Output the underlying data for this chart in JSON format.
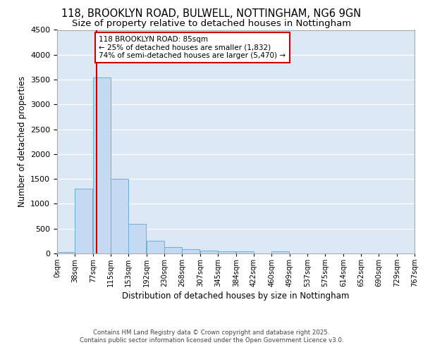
{
  "title1": "118, BROOKLYN ROAD, BULWELL, NOTTINGHAM, NG6 9GN",
  "title2": "Size of property relative to detached houses in Nottingham",
  "xlabel": "Distribution of detached houses by size in Nottingham",
  "ylabel": "Number of detached properties",
  "bin_labels": [
    "0sqm",
    "38sqm",
    "77sqm",
    "115sqm",
    "153sqm",
    "192sqm",
    "230sqm",
    "268sqm",
    "307sqm",
    "345sqm",
    "384sqm",
    "422sqm",
    "460sqm",
    "499sqm",
    "537sqm",
    "575sqm",
    "614sqm",
    "652sqm",
    "690sqm",
    "729sqm",
    "767sqm"
  ],
  "bin_edges": [
    0,
    38,
    77,
    115,
    153,
    192,
    230,
    268,
    307,
    345,
    384,
    422,
    460,
    499,
    537,
    575,
    614,
    652,
    690,
    729,
    767
  ],
  "bar_heights": [
    30,
    1300,
    3550,
    1500,
    600,
    250,
    130,
    80,
    50,
    40,
    40,
    0,
    40,
    0,
    0,
    0,
    0,
    0,
    0,
    0
  ],
  "bar_color": "#c5d9f0",
  "bar_edge_color": "#6baed6",
  "property_size": 85,
  "vline_color": "#cc0000",
  "annotation_text": "118 BROOKLYN ROAD: 85sqm\n← 25% of detached houses are smaller (1,832)\n74% of semi-detached houses are larger (5,470) →",
  "annotation_box_color": "#ffffff",
  "annotation_box_edge": "#cc0000",
  "ylim": [
    0,
    4500
  ],
  "yticks": [
    0,
    500,
    1000,
    1500,
    2000,
    2500,
    3000,
    3500,
    4000,
    4500
  ],
  "background_color": "#dce9f5",
  "footer1": "Contains HM Land Registry data © Crown copyright and database right 2025.",
  "footer2": "Contains public sector information licensed under the Open Government Licence v3.0.",
  "title1_fontsize": 10.5,
  "title2_fontsize": 9.5
}
